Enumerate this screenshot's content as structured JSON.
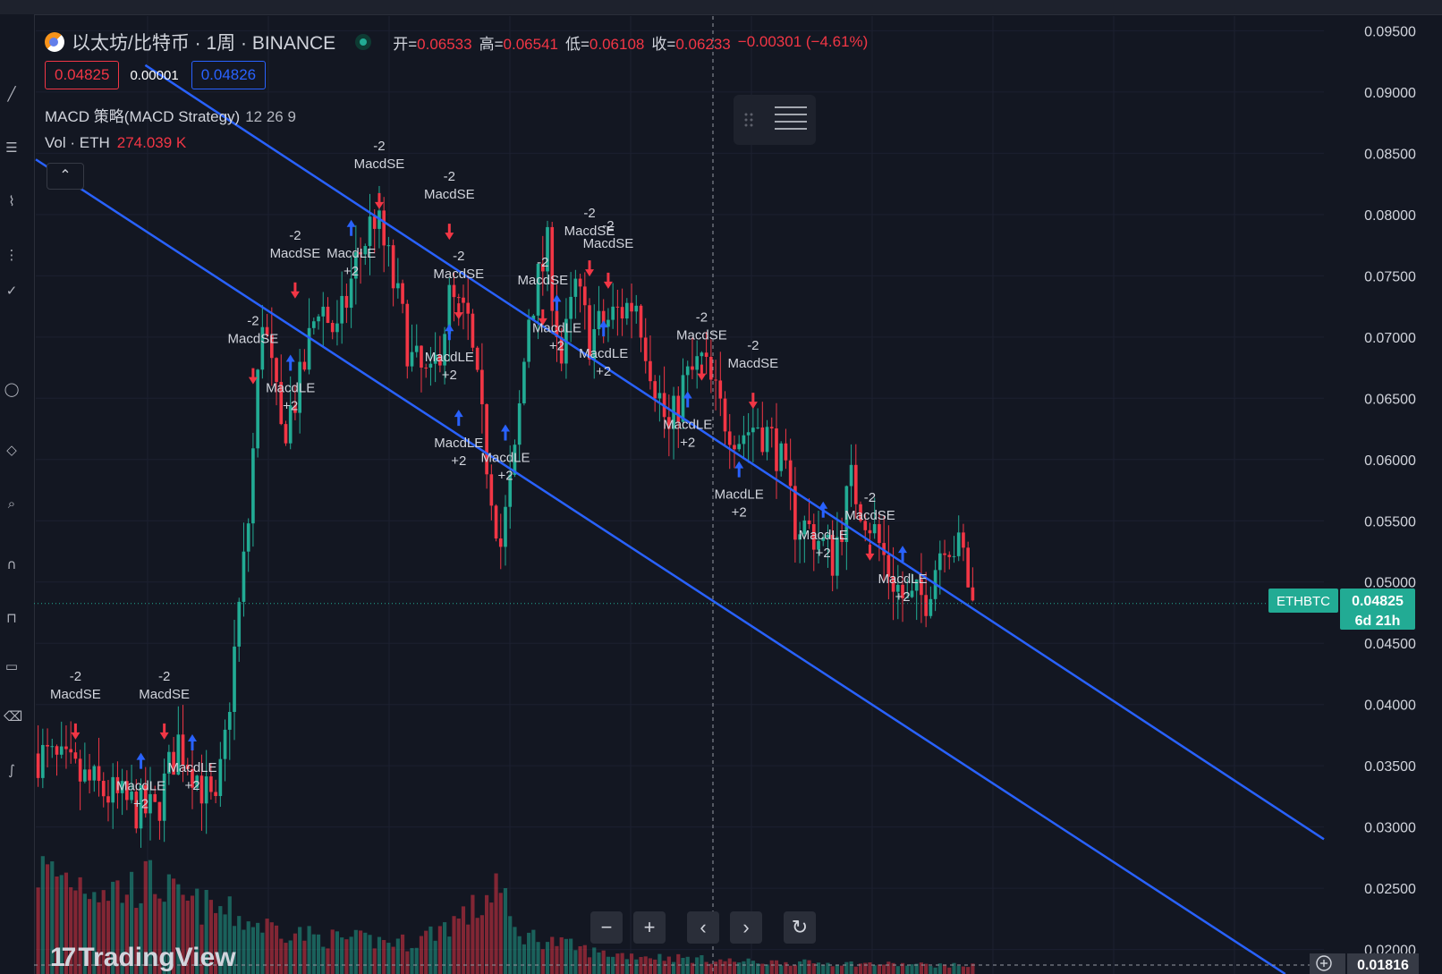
{
  "header": {
    "symbol_title": "以太坊/比特币 · 1周 · BINANCE",
    "ohlc": [
      {
        "key": "开=",
        "value": "0.06533"
      },
      {
        "key": "高=",
        "value": "0.06541"
      },
      {
        "key": "低=",
        "value": "0.06108"
      },
      {
        "key": "收=",
        "value": "0.06233"
      }
    ],
    "change": "−0.00301 (−4.61%)",
    "bid": "0.04825",
    "spread": "0.00001",
    "ask": "0.04826",
    "indicator_name": "MACD 策略(MACD Strategy)",
    "indicator_params": "12 26 9",
    "volume_label": "Vol · ETH",
    "volume_value": "274.039 K",
    "collapse_icon": "chevron-up-icon"
  },
  "price_tag": {
    "symbol": "ETHBTC",
    "price": "0.04825",
    "countdown": "6d 21h"
  },
  "crosshair_price": "0.01816",
  "nav": {
    "zoom_out": "−",
    "zoom_in": "+",
    "scroll_left": "‹",
    "scroll_right": "›",
    "reset": "↻"
  },
  "watermark": "TradingView",
  "colors": {
    "up": "#22ab94",
    "down": "#f23645",
    "channel": "#2962ff",
    "background": "#131722",
    "grid": "#1c2030"
  },
  "chart_data": {
    "type": "candlestick",
    "symbol": "ETHBTC",
    "exchange": "BINANCE",
    "interval": "1周",
    "ylim": [
      0.018,
      0.0962
    ],
    "y_ticks": [
      0.095,
      0.09,
      0.085,
      0.08,
      0.075,
      0.07,
      0.065,
      0.06,
      0.055,
      0.05,
      0.045,
      0.04,
      0.035,
      0.03,
      0.025,
      0.02
    ],
    "y_tick_labels": [
      "0.09500",
      "0.09000",
      "0.08500",
      "0.08000",
      "0.07500",
      "0.07000",
      "0.06500",
      "0.06000",
      "0.05500",
      "0.05000",
      "0.04500",
      "0.04000",
      "0.03500",
      "0.03000",
      "0.02500",
      "0.02000"
    ],
    "last_price": 0.04825,
    "close_trend": [
      [
        0,
        0.036
      ],
      [
        18,
        0.032
      ],
      [
        25,
        0.031
      ],
      [
        30,
        0.037
      ],
      [
        33,
        0.035
      ],
      [
        38,
        0.031
      ],
      [
        40,
        0.037
      ],
      [
        45,
        0.055
      ],
      [
        48,
        0.072
      ],
      [
        52,
        0.062
      ],
      [
        56,
        0.066
      ],
      [
        60,
        0.073
      ],
      [
        64,
        0.07
      ],
      [
        68,
        0.076
      ],
      [
        72,
        0.08
      ],
      [
        75,
        0.076
      ],
      [
        80,
        0.068
      ],
      [
        84,
        0.066
      ],
      [
        88,
        0.073
      ],
      [
        92,
        0.071
      ],
      [
        96,
        0.06
      ],
      [
        99,
        0.053
      ],
      [
        102,
        0.06
      ],
      [
        105,
        0.072
      ],
      [
        109,
        0.077
      ],
      [
        112,
        0.068
      ],
      [
        115,
        0.074
      ],
      [
        118,
        0.07
      ],
      [
        121,
        0.071
      ],
      [
        124,
        0.072
      ],
      [
        128,
        0.073
      ],
      [
        131,
        0.068
      ],
      [
        135,
        0.062
      ],
      [
        138,
        0.066
      ],
      [
        142,
        0.068
      ],
      [
        146,
        0.064
      ],
      [
        150,
        0.062
      ],
      [
        154,
        0.063
      ],
      [
        158,
        0.061
      ],
      [
        162,
        0.055
      ],
      [
        166,
        0.054
      ],
      [
        170,
        0.052
      ],
      [
        174,
        0.058
      ],
      [
        178,
        0.055
      ],
      [
        182,
        0.051
      ],
      [
        186,
        0.048
      ],
      [
        190,
        0.049
      ],
      [
        194,
        0.054
      ],
      [
        198,
        0.052
      ],
      [
        200,
        0.048
      ]
    ],
    "volume_trend": [
      [
        0,
        1.0
      ],
      [
        18,
        0.8
      ],
      [
        25,
        0.9
      ],
      [
        30,
        0.7
      ],
      [
        40,
        0.6
      ],
      [
        45,
        0.5
      ],
      [
        60,
        0.35
      ],
      [
        80,
        0.3
      ],
      [
        95,
        0.65
      ],
      [
        98,
        0.9
      ],
      [
        102,
        0.4
      ],
      [
        120,
        0.2
      ],
      [
        150,
        0.12
      ],
      [
        200,
        0.08
      ]
    ],
    "channel_lines": [
      {
        "name": "upper",
        "from": [
          0.085,
          0.0922
        ],
        "to": [
          1.0,
          0.029
        ]
      },
      {
        "name": "lower",
        "from": [
          0.0,
          0.0845
        ],
        "to": [
          0.97,
          0.018
        ]
      }
    ],
    "signals": [
      {
        "label": "MacdSE",
        "qty": "-2",
        "bar": 8,
        "price": 0.0405
      },
      {
        "label": "MacdLE",
        "qty": "+2",
        "bar": 22,
        "price": 0.033
      },
      {
        "label": "MacdSE",
        "qty": "-2",
        "bar": 27,
        "price": 0.0405
      },
      {
        "label": "MacdLE",
        "qty": "+2",
        "bar": 33,
        "price": 0.0345
      },
      {
        "label": "MacdSE",
        "qty": "-2",
        "bar": 46,
        "price": 0.0695
      },
      {
        "label": "MacdLE",
        "qty": "+2",
        "bar": 54,
        "price": 0.0655
      },
      {
        "label": "MacdSE",
        "qty": "-2",
        "bar": 55,
        "price": 0.0765
      },
      {
        "label": "MacdLE",
        "qty": "+2",
        "bar": 67,
        "price": 0.0765
      },
      {
        "label": "MacdSE",
        "qty": "-2",
        "bar": 73,
        "price": 0.0838
      },
      {
        "label": "MacdSE",
        "qty": "-2",
        "bar": 88,
        "price": 0.0813
      },
      {
        "label": "MacdSE",
        "qty": "-2",
        "bar": 90,
        "price": 0.0748
      },
      {
        "label": "MacdLE",
        "qty": "+2",
        "bar": 88,
        "price": 0.068
      },
      {
        "label": "MacdLE",
        "qty": "+2",
        "bar": 90,
        "price": 0.061
      },
      {
        "label": "MacdLE",
        "qty": "+2",
        "bar": 100,
        "price": 0.0598
      },
      {
        "label": "MacdSE",
        "qty": "-2",
        "bar": 108,
        "price": 0.0743
      },
      {
        "label": "MacdLE",
        "qty": "+2",
        "bar": 111,
        "price": 0.0704
      },
      {
        "label": "MacdSE",
        "qty": "-2",
        "bar": 118,
        "price": 0.0783
      },
      {
        "label": "MacdSE",
        "qty": "-2",
        "bar": 122,
        "price": 0.0773
      },
      {
        "label": "MacdLE",
        "qty": "+2",
        "bar": 121,
        "price": 0.0683
      },
      {
        "label": "MacdLE",
        "qty": "+2",
        "bar": 139,
        "price": 0.0625
      },
      {
        "label": "MacdSE",
        "qty": "-2",
        "bar": 142,
        "price": 0.0698
      },
      {
        "label": "MacdSE",
        "qty": "-2",
        "bar": 153,
        "price": 0.0675
      },
      {
        "label": "MacdLE",
        "qty": "+2",
        "bar": 150,
        "price": 0.0568
      },
      {
        "label": "MacdLE",
        "qty": "+2",
        "bar": 168,
        "price": 0.0535
      },
      {
        "label": "MacdSE",
        "qty": "-2",
        "bar": 178,
        "price": 0.0551
      },
      {
        "label": "MacdLE",
        "qty": "+2",
        "bar": 185,
        "price": 0.0499
      }
    ]
  }
}
